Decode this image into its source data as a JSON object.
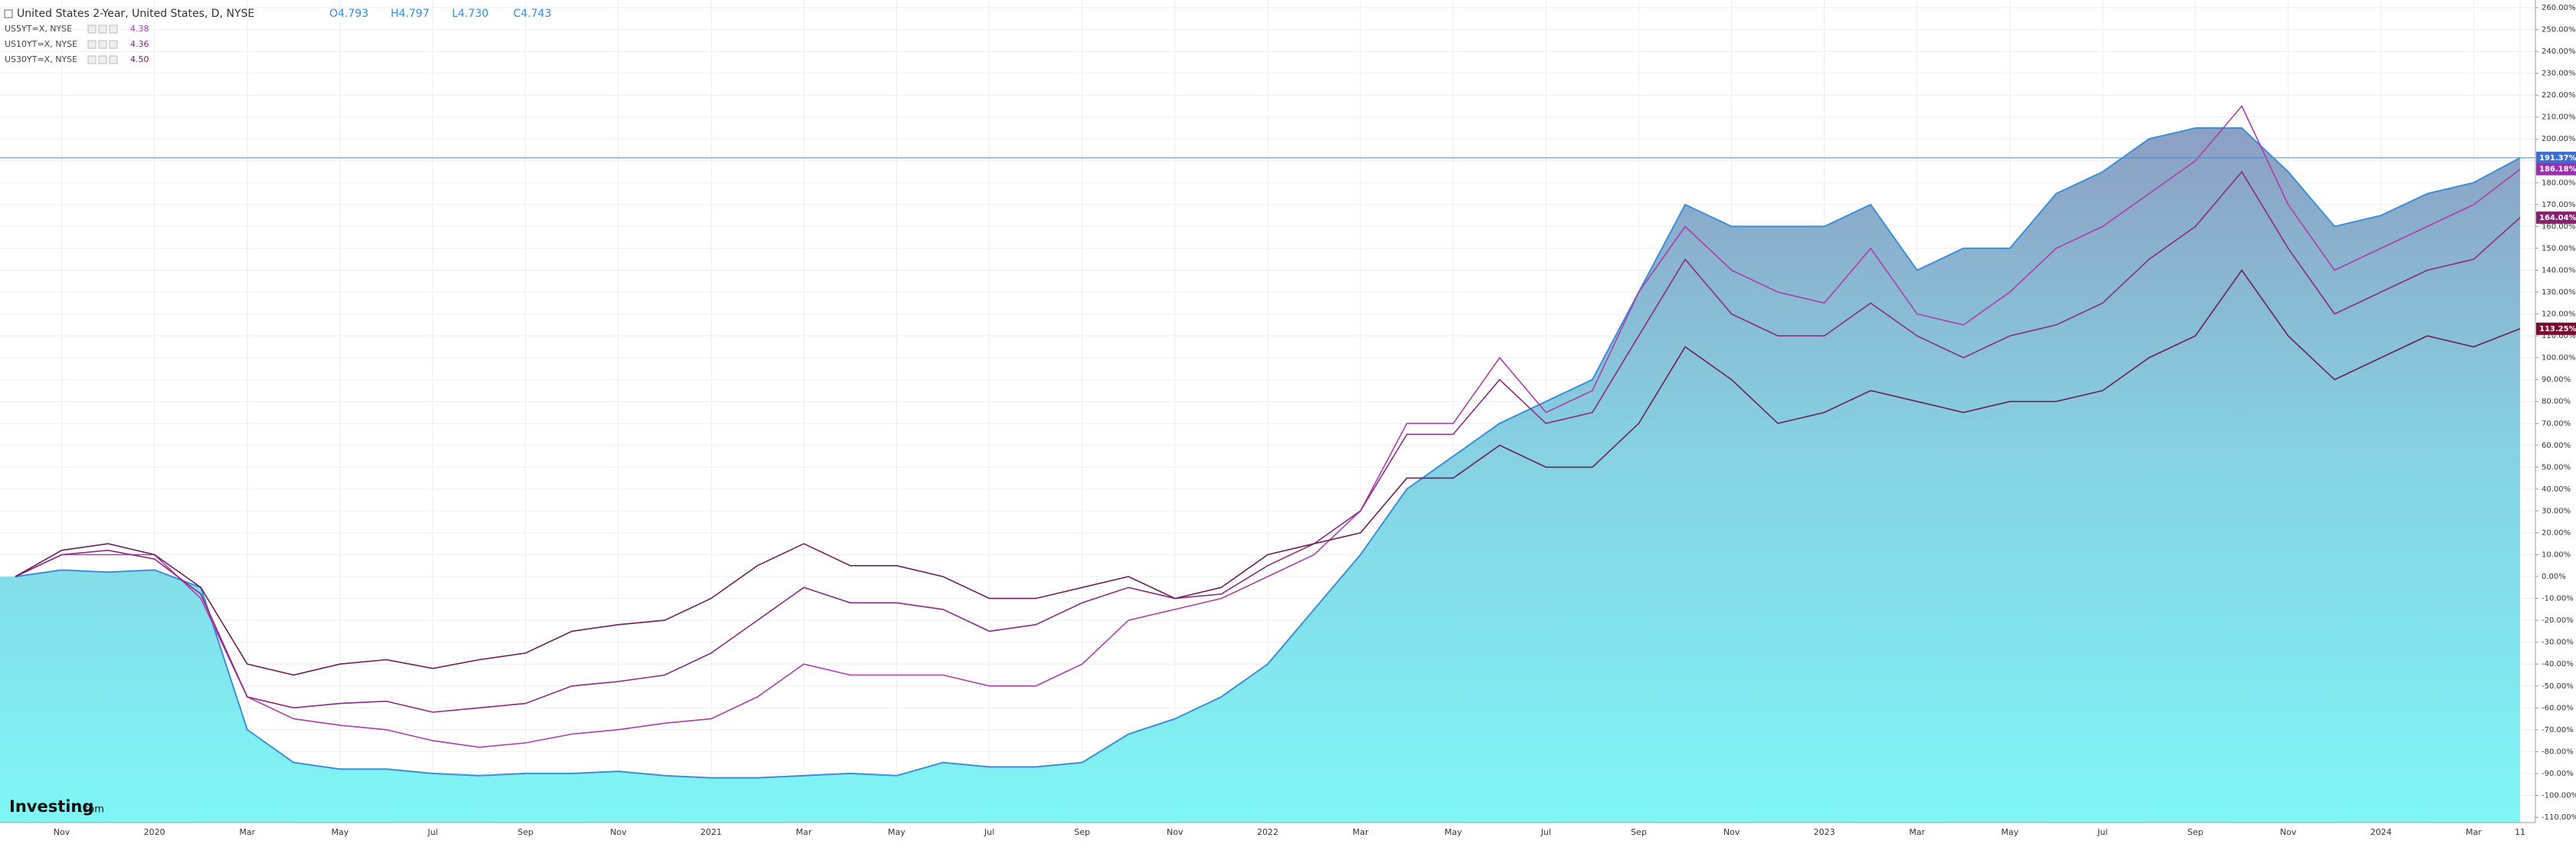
{
  "chart_data": {
    "type": "line",
    "title": "United States 2-Year, United States, D, NYSE",
    "ohlc": [
      "O4.793",
      "H4.797",
      "L4.730",
      "C4.743"
    ],
    "logo": [
      "Investing",
      ".com"
    ],
    "categories": [
      null,
      "Nov",
      null,
      "2020",
      null,
      "Mar",
      null,
      "May",
      null,
      "Jul",
      null,
      "Sep",
      null,
      "Nov",
      null,
      "2021",
      null,
      "Mar",
      null,
      "May",
      null,
      "Jul",
      null,
      "Sep",
      null,
      "Nov",
      null,
      "2022",
      null,
      "Mar",
      null,
      "May",
      null,
      "Jul",
      null,
      "Sep",
      null,
      "Nov",
      null,
      "2023",
      null,
      "Mar",
      null,
      "May",
      null,
      "Jul",
      null,
      "Sep",
      null,
      "Nov",
      null,
      "2024",
      null,
      "Mar",
      "11"
    ],
    "series": [
      {
        "name": "United States 2-Year, United States, D, NYSE",
        "area": true,
        "color": "#3a8fd8",
        "label_color": "#3b6fd6",
        "last_label": "191.37%",
        "values": [
          0,
          3,
          2,
          3,
          -5,
          -70,
          -85,
          -88,
          -88,
          -90,
          -91,
          -90,
          -90,
          -89,
          -91,
          -92,
          -92,
          -91,
          -90,
          -91,
          -85,
          -87,
          -87,
          -85,
          -72,
          -65,
          -55,
          -40,
          -15,
          10,
          40,
          55,
          70,
          80,
          90,
          130,
          170,
          160,
          160,
          160,
          170,
          140,
          150,
          150,
          175,
          185,
          200,
          205,
          205,
          185,
          160,
          165,
          175,
          180,
          191.37
        ]
      },
      {
        "name": "US5YT=X, NYSE",
        "last": "4.38",
        "color": "#b03ca8",
        "label_color": "#9a30b0",
        "last_label": "186.18%",
        "values": [
          0,
          10,
          10,
          10,
          -10,
          -55,
          -65,
          -68,
          -70,
          -75,
          -78,
          -76,
          -72,
          -70,
          -67,
          -65,
          -55,
          -40,
          -45,
          -45,
          -45,
          -50,
          -50,
          -40,
          -20,
          -15,
          -10,
          0,
          10,
          30,
          70,
          70,
          100,
          75,
          85,
          130,
          160,
          140,
          130,
          125,
          150,
          120,
          115,
          130,
          150,
          160,
          175,
          190,
          215,
          170,
          140,
          150,
          160,
          170,
          186.18
        ]
      },
      {
        "name": "US10YT=X, NYSE",
        "last": "4.36",
        "color": "#8a2a80",
        "label_color": "#8a2070",
        "last_label": "164.04%",
        "values": [
          0,
          10,
          12,
          8,
          -8,
          -55,
          -60,
          -58,
          -57,
          -62,
          -60,
          -58,
          -50,
          -48,
          -45,
          -35,
          -20,
          -5,
          -12,
          -12,
          -15,
          -25,
          -22,
          -12,
          -5,
          -10,
          -8,
          5,
          15,
          30,
          65,
          65,
          90,
          70,
          75,
          110,
          145,
          120,
          110,
          110,
          125,
          110,
          100,
          110,
          115,
          125,
          145,
          160,
          185,
          150,
          120,
          130,
          140,
          145,
          164.04
        ]
      },
      {
        "name": "US30YT=X, NYSE",
        "last": "4.50",
        "color": "#6e1e58",
        "label_color": "#7a0a30",
        "last_label": "113.25%",
        "values": [
          0,
          12,
          15,
          10,
          -5,
          -40,
          -45,
          -40,
          -38,
          -42,
          -38,
          -35,
          -25,
          -22,
          -20,
          -10,
          5,
          15,
          5,
          5,
          0,
          -10,
          -10,
          -5,
          0,
          -10,
          -5,
          10,
          15,
          20,
          45,
          45,
          60,
          50,
          50,
          70,
          105,
          90,
          70,
          75,
          85,
          80,
          75,
          80,
          80,
          85,
          100,
          110,
          140,
          110,
          90,
          100,
          110,
          105,
          113.25
        ]
      }
    ],
    "ylim": [
      -110,
      260
    ],
    "yticks": [
      {
        "value": 260,
        "label": "260.00%"
      },
      {
        "value": 250,
        "label": "250.00%"
      },
      {
        "value": 240,
        "label": "240.00%"
      },
      {
        "value": 230,
        "label": "230.00%"
      },
      {
        "value": 220,
        "label": "220.00%"
      },
      {
        "value": 210,
        "label": "210.00%"
      },
      {
        "value": 200,
        "label": "200.00%"
      },
      {
        "value": 190,
        "label": "190.00%"
      },
      {
        "value": 180,
        "label": "180.00%"
      },
      {
        "value": 170,
        "label": "170.00%"
      },
      {
        "value": 160,
        "label": "160.00%"
      },
      {
        "value": 150,
        "label": "150.00%"
      },
      {
        "value": 140,
        "label": "140.00%"
      },
      {
        "value": 130,
        "label": "130.00%"
      },
      {
        "value": 120,
        "label": "120.00%"
      },
      {
        "value": 110,
        "label": "110.00%"
      },
      {
        "value": 100,
        "label": "100.00%"
      },
      {
        "value": 90,
        "label": "90.00%"
      },
      {
        "value": 80,
        "label": "80.00%"
      },
      {
        "value": 70,
        "label": "70.00%"
      },
      {
        "value": 60,
        "label": "60.00%"
      },
      {
        "value": 50,
        "label": "50.00%"
      },
      {
        "value": 40,
        "label": "40.00%"
      },
      {
        "value": 30,
        "label": "30.00%"
      },
      {
        "value": 20,
        "label": "20.00%"
      },
      {
        "value": 10,
        "label": "10.00%"
      },
      {
        "value": 0,
        "label": "0.00%"
      },
      {
        "value": -10,
        "label": "-10.00%"
      },
      {
        "value": -20,
        "label": "-20.00%"
      },
      {
        "value": -30,
        "label": "-30.00%"
      },
      {
        "value": -40,
        "label": "-40.00%"
      },
      {
        "value": -50,
        "label": "-50.00%"
      },
      {
        "value": -60,
        "label": "-60.00%"
      },
      {
        "value": -70,
        "label": "-70.00%"
      },
      {
        "value": -80,
        "label": "-80.00%"
      },
      {
        "value": -90,
        "label": "-90.00%"
      },
      {
        "value": -100,
        "label": "-100.00%"
      },
      {
        "value": -110,
        "label": "-110.00%"
      }
    ],
    "grid": true
  }
}
